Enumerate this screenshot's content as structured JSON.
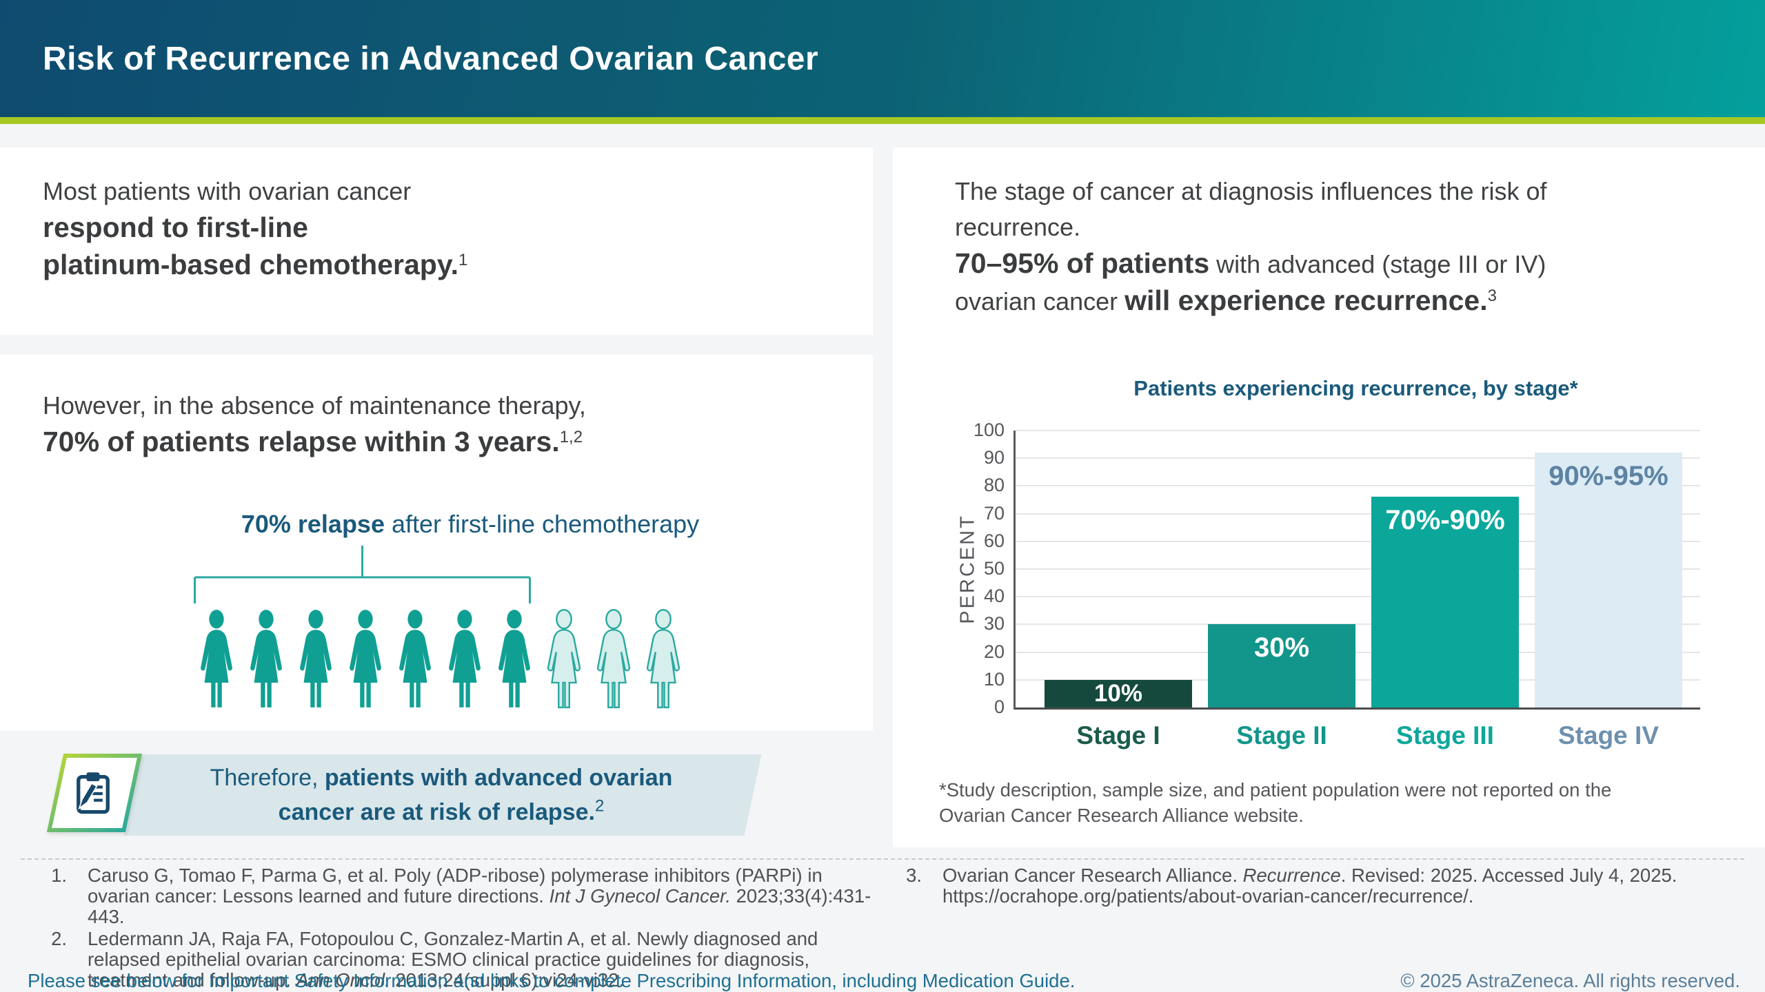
{
  "header": {
    "title": "Risk of Recurrence in Advanced Ovarian Cancer"
  },
  "left_panel": {
    "block1": {
      "intro": "Most patients with ovarian cancer",
      "bold_line1": "respond to first-line",
      "bold_line2": "platinum-based chemotherapy",
      "period": ".",
      "citation": "1"
    },
    "block2": {
      "intro": "However, in the absence of maintenance therapy,",
      "bold": "70% of patients relapse within 3 years",
      "period": ".",
      "citation": "1,2"
    },
    "pictograph": {
      "caption_bold": "70% relapse",
      "caption_rest": " after first-line chemotherapy",
      "total_figures": 10,
      "highlighted_figures": 7,
      "figure_fill": "#10a093",
      "figure_light_fill": "#d6efec",
      "figure_light_stroke": "#2aa9a0",
      "bracket_color": "#2aa9a0"
    },
    "callout": {
      "lead": "Therefore, ",
      "bold_line1": "patients with advanced ovarian",
      "bold_line2": "cancer are at risk of relapse",
      "period": ".",
      "citation": "2",
      "band_color": "#d9e6ea",
      "text_color": "#1a5a7c",
      "icon": "clipboard-pencil-icon"
    }
  },
  "right_panel": {
    "intro_line1": "The stage of cancer at diagnosis influences the risk of",
    "intro_line2": "recurrence.",
    "stat_bold": "70–95% of patients",
    "stat_rest": " with advanced (stage III or IV)",
    "line3_regular": "ovarian cancer ",
    "line3_bold": "will experience recurrence",
    "period": ".",
    "citation": "3",
    "footnote_line1": "*Study description, sample size, and patient population were not reported on the",
    "footnote_line2": "Ovarian Cancer Research Alliance website."
  },
  "chart_data": {
    "type": "bar",
    "title": "Patients experiencing recurrence, by stage*",
    "ylabel": "PERCENT",
    "xlabel": "",
    "ylim": [
      0,
      100
    ],
    "ytick_step": 10,
    "grid": true,
    "legend": false,
    "categories": [
      "Stage I",
      "Stage II",
      "Stage III",
      "Stage IV"
    ],
    "values": [
      10,
      30,
      76,
      92
    ],
    "value_labels": [
      "10%",
      "30%",
      "70%-90%",
      "90%-95%"
    ],
    "bar_colors": [
      "#15493e",
      "#12968b",
      "#0ba79a",
      "#dcebf4"
    ],
    "value_label_colors": [
      "#ffffff",
      "#ffffff",
      "#ffffff",
      "#5d83a3"
    ],
    "value_label_positions": [
      "center",
      "top",
      "top",
      "top"
    ],
    "category_colors": [
      "#1a5c4b",
      "#12968b",
      "#0ba79a",
      "#6d90ae"
    ],
    "axis_color": "#4b4d4f",
    "grid_color": "#e4e5e6",
    "tick_color": "#55575a"
  },
  "references": {
    "column1": [
      {
        "number": "1.",
        "segments": [
          {
            "text": "Caruso G, Tomao F, Parma G, et al. Poly (ADP-ribose) polymerase inhibitors (PARPi) in ovarian cancer: Lessons learned and future directions. ",
            "italic": false
          },
          {
            "text": "Int J Gynecol Cancer.",
            "italic": true
          },
          {
            "text": " 2023;33(4):431-443.",
            "italic": false
          }
        ]
      },
      {
        "number": "2.",
        "segments": [
          {
            "text": "Ledermann JA, Raja FA, Fotopoulou C, Gonzalez-Martin A, et al. Newly diagnosed and relapsed epithelial ovarian carcinoma: ESMO clinical practice guidelines for diagnosis, treatment and follow-up. ",
            "italic": false
          },
          {
            "text": "Ann Oncol.",
            "italic": true
          },
          {
            "text": " 2013;24(suppl 6):vi24-vi32.",
            "italic": false
          }
        ]
      }
    ],
    "column2": [
      {
        "number": "3.",
        "segments": [
          {
            "text": "Ovarian Cancer Research Alliance. ",
            "italic": false
          },
          {
            "text": "Recurrence",
            "italic": true
          },
          {
            "text": ". Revised: 2025. Accessed July 4, 2025. https://ocrahope.org/patients/about-ovarian-cancer/recurrence/.",
            "italic": false
          }
        ]
      }
    ]
  },
  "footer": {
    "safety_note": "Please see below for Important Safety Information and links to complete Prescribing Information, including Medication Guide.",
    "copyright": "© 2025 AstraZeneca. All rights reserved."
  }
}
